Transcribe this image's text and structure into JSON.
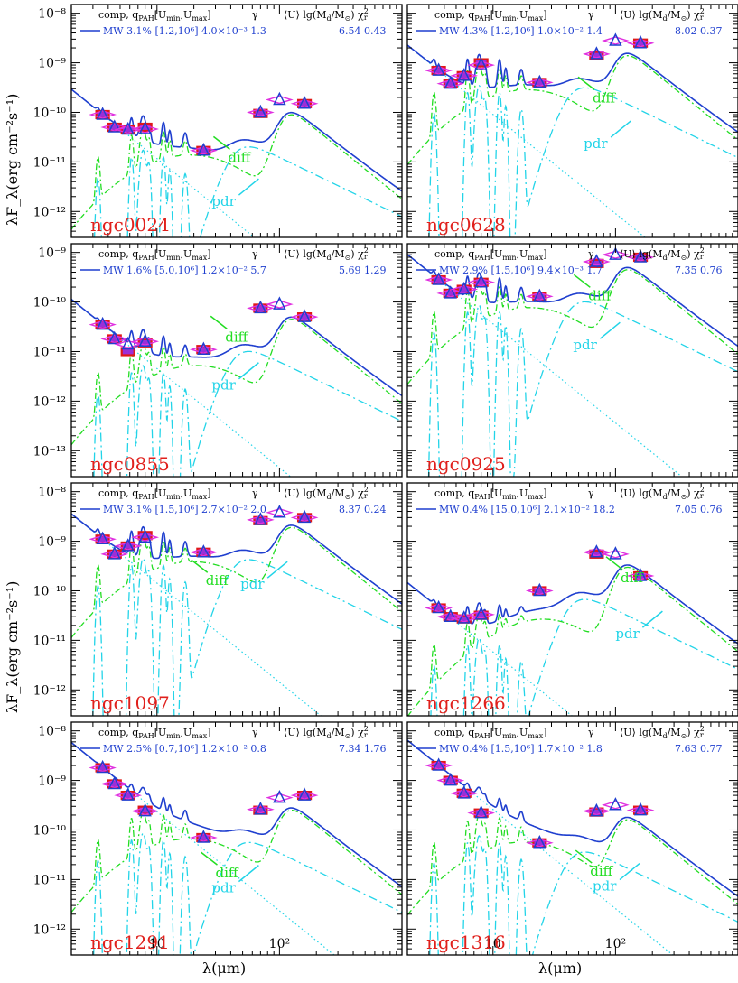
{
  "figure": {
    "xlabel": "λ(μm)",
    "ylabel": "λF_λ(erg cm⁻²s⁻¹)",
    "x_tick_labels": [
      "10",
      "10²"
    ],
    "legend_header": {
      "comp": "comp, q",
      "qsub": "PAH",
      "umin": "[U",
      "uminsub": "min",
      "umax": ",U",
      "umaxsub": "max",
      "close": "]",
      "gamma": "γ",
      "u": "⟨U⟩",
      "lgm": "lg(M",
      "lgmsub1": "d",
      "lgmmid": "/M",
      "lgmsub2": "⊙",
      "lgmend": ")",
      "chi": "χ",
      "chisup": "2",
      "chisub": "r"
    },
    "annotations": {
      "diff": "diff",
      "pdr": "pdr"
    }
  },
  "colors": {
    "total": "#1f3fcf",
    "diff": "#22dd22",
    "pdr": "#22d4e8",
    "stars": "#22d4e8",
    "obs_box": "#e01818",
    "obs_fill": "#9a2fd8",
    "model_diamond": "#e030e0",
    "model_triangle": "#1f3fcf",
    "galaxy_label": "#e0201c"
  },
  "chart_data": [
    {
      "type": "line",
      "panel": "ngc0024",
      "name_label": "ngc0024",
      "xlim": [
        2,
        1000
      ],
      "ylim": [
        3e-13,
        1.5e-08
      ],
      "y_tick_labels": [
        "10⁻⁸",
        "10⁻⁹",
        "10⁻¹⁰",
        "10⁻¹¹",
        "10⁻¹²"
      ],
      "y_ticks": [
        1e-08,
        1e-09,
        1e-10,
        1e-11,
        1e-12
      ],
      "legend": {
        "comp": "MW",
        "qpah": "3.1%",
        "urange": "[1.2,10⁶]",
        "gamma": "4.0×10⁻³",
        "u": "1.3",
        "lgm": "6.54",
        "chi2": "0.43"
      },
      "observed": [
        [
          3.6,
          9e-11
        ],
        [
          4.5,
          5e-11
        ],
        [
          5.8,
          4.5e-11
        ],
        [
          8.0,
          5e-11
        ],
        [
          24,
          1.7e-11
        ],
        [
          70,
          9.5e-11
        ],
        [
          160,
          1.5e-10
        ]
      ],
      "model": [
        [
          3.6,
          9e-11
        ],
        [
          4.5,
          5e-11
        ],
        [
          5.8,
          4.5e-11
        ],
        [
          8.0,
          4.6e-11
        ],
        [
          24,
          1.7e-11
        ],
        [
          70,
          1e-10
        ],
        [
          100,
          1.8e-10
        ],
        [
          160,
          1.5e-10
        ]
      ],
      "labels": {
        "diff": [
          38,
          1e-11
        ],
        "pdr": [
          28,
          1.3e-12
        ]
      }
    },
    {
      "type": "line",
      "panel": "ngc0628",
      "name_label": "ngc0628",
      "xlim": [
        2,
        1000
      ],
      "ylim": [
        3e-13,
        1.5e-08
      ],
      "y_tick_labels": [],
      "y_ticks": [
        1e-08,
        1e-09,
        1e-10,
        1e-11,
        1e-12
      ],
      "legend": {
        "comp": "MW",
        "qpah": "4.3%",
        "urange": "[1.2,10⁶]",
        "gamma": "1.0×10⁻²",
        "u": "1.4",
        "lgm": "8.02",
        "chi2": "0.37"
      },
      "observed": [
        [
          3.6,
          7e-10
        ],
        [
          4.5,
          3.8e-10
        ],
        [
          5.8,
          5.5e-10
        ],
        [
          8.0,
          1e-09
        ],
        [
          24,
          4e-10
        ],
        [
          70,
          1.4e-09
        ],
        [
          160,
          2.5e-09
        ]
      ],
      "model": [
        [
          3.6,
          7e-10
        ],
        [
          4.5,
          3.8e-10
        ],
        [
          5.8,
          5.5e-10
        ],
        [
          8.0,
          9e-10
        ],
        [
          24,
          4e-10
        ],
        [
          70,
          1.5e-09
        ],
        [
          100,
          2.8e-09
        ],
        [
          160,
          2.5e-09
        ]
      ],
      "labels": {
        "diff": [
          65,
          1.6e-10
        ],
        "pdr": [
          55,
          1.9e-11
        ]
      }
    },
    {
      "type": "line",
      "panel": "ngc0855",
      "name_label": "ngc0855",
      "xlim": [
        2,
        1000
      ],
      "ylim": [
        3e-14,
        1.5e-09
      ],
      "y_tick_labels": [
        "10⁻⁹",
        "10⁻¹⁰",
        "10⁻¹¹",
        "10⁻¹²",
        "10⁻¹³"
      ],
      "y_ticks": [
        1e-09,
        1e-10,
        1e-11,
        1e-12,
        1e-13
      ],
      "legend": {
        "comp": "MW",
        "qpah": "1.6%",
        "urange": "[5.0,10⁶]",
        "gamma": "1.2×10⁻²",
        "u": "5.7",
        "lgm": "5.69",
        "chi2": "1.29"
      },
      "observed": [
        [
          3.6,
          3.5e-11
        ],
        [
          4.5,
          1.8e-11
        ],
        [
          5.8,
          1e-11
        ],
        [
          8.0,
          1.5e-11
        ],
        [
          24,
          1.1e-11
        ],
        [
          70,
          7.5e-11
        ],
        [
          160,
          5e-11
        ]
      ],
      "model": [
        [
          3.6,
          3.5e-11
        ],
        [
          4.5,
          1.8e-11
        ],
        [
          5.8,
          1.4e-11
        ],
        [
          8.0,
          1.6e-11
        ],
        [
          24,
          1.1e-11
        ],
        [
          70,
          7.5e-11
        ],
        [
          100,
          9e-11
        ],
        [
          160,
          5e-11
        ]
      ],
      "labels": {
        "diff": [
          36,
          1.6e-11
        ],
        "pdr": [
          28,
          1.7e-12
        ]
      }
    },
    {
      "type": "line",
      "panel": "ngc0925",
      "name_label": "ngc0925",
      "xlim": [
        2,
        1000
      ],
      "ylim": [
        3e-14,
        1.5e-09
      ],
      "y_tick_labels": [],
      "y_ticks": [
        1e-09,
        1e-10,
        1e-11,
        1e-12,
        1e-13
      ],
      "legend": {
        "comp": "MW",
        "qpah": "2.9%",
        "urange": "[1.5,10⁶]",
        "gamma": "9.4×10⁻³",
        "u": "1.7",
        "lgm": "7.35",
        "chi2": "0.76"
      },
      "observed": [
        [
          3.6,
          2.8e-10
        ],
        [
          4.5,
          1.5e-10
        ],
        [
          5.8,
          1.8e-10
        ],
        [
          8.0,
          2.5e-10
        ],
        [
          24,
          1.3e-10
        ],
        [
          70,
          6e-10
        ],
        [
          160,
          8e-10
        ]
      ],
      "model": [
        [
          3.6,
          2.8e-10
        ],
        [
          4.5,
          1.5e-10
        ],
        [
          5.8,
          1.8e-10
        ],
        [
          8.0,
          2.5e-10
        ],
        [
          24,
          1.3e-10
        ],
        [
          70,
          6.5e-10
        ],
        [
          100,
          9e-10
        ],
        [
          160,
          8e-10
        ]
      ],
      "labels": {
        "diff": [
          60,
          1.1e-10
        ],
        "pdr": [
          45,
          1.1e-11
        ]
      }
    },
    {
      "type": "line",
      "panel": "ngc1097",
      "name_label": "ngc1097",
      "xlim": [
        2,
        1000
      ],
      "ylim": [
        3e-13,
        1.5e-08
      ],
      "y_tick_labels": [
        "10⁻⁸",
        "10⁻⁹",
        "10⁻¹⁰",
        "10⁻¹¹",
        "10⁻¹²"
      ],
      "y_ticks": [
        1e-08,
        1e-09,
        1e-10,
        1e-11,
        1e-12
      ],
      "legend": {
        "comp": "MW",
        "qpah": "3.1%",
        "urange": "[1.5,10⁶]",
        "gamma": "2.7×10⁻²",
        "u": "2.0",
        "lgm": "8.37",
        "chi2": "0.24"
      },
      "observed": [
        [
          3.6,
          1.1e-09
        ],
        [
          4.5,
          5.5e-10
        ],
        [
          5.8,
          8e-10
        ],
        [
          8.0,
          1.3e-09
        ],
        [
          24,
          6e-10
        ],
        [
          70,
          2.6e-09
        ],
        [
          160,
          3e-09
        ]
      ],
      "model": [
        [
          3.6,
          1.1e-09
        ],
        [
          4.5,
          5.5e-10
        ],
        [
          5.8,
          8e-10
        ],
        [
          8.0,
          1.2e-09
        ],
        [
          24,
          6e-10
        ],
        [
          70,
          2.7e-09
        ],
        [
          100,
          3.8e-09
        ],
        [
          160,
          3e-09
        ]
      ],
      "labels": {
        "diff": [
          25,
          1.3e-10
        ],
        "pdr": [
          48,
          1.1e-10
        ]
      }
    },
    {
      "type": "line",
      "panel": "ngc1266",
      "name_label": "ngc1266",
      "xlim": [
        2,
        1000
      ],
      "ylim": [
        3e-13,
        1.5e-08
      ],
      "y_tick_labels": [],
      "y_ticks": [
        1e-08,
        1e-09,
        1e-10,
        1e-11,
        1e-12
      ],
      "legend": {
        "comp": "MW",
        "qpah": "0.4%",
        "urange": "[15.0,10⁶]",
        "gamma": "2.1×10⁻²",
        "u": "18.2",
        "lgm": "7.05",
        "chi2": "0.76"
      },
      "observed": [
        [
          3.6,
          4.5e-11
        ],
        [
          4.5,
          3e-11
        ],
        [
          5.8,
          2.7e-11
        ],
        [
          8.0,
          3.2e-11
        ],
        [
          24,
          1e-10
        ],
        [
          70,
          5.5e-10
        ],
        [
          160,
          2e-10
        ]
      ],
      "model": [
        [
          3.6,
          4.5e-11
        ],
        [
          4.5,
          3e-11
        ],
        [
          5.8,
          2.8e-11
        ],
        [
          8.0,
          3.3e-11
        ],
        [
          24,
          1e-10
        ],
        [
          70,
          6e-10
        ],
        [
          100,
          5.5e-10
        ],
        [
          160,
          2e-10
        ]
      ],
      "labels": {
        "diff": [
          110,
          1.5e-10
        ],
        "pdr": [
          100,
          1.1e-11
        ]
      }
    },
    {
      "type": "line",
      "panel": "ngc1291",
      "name_label": "ngc1291",
      "xlim": [
        2,
        1000
      ],
      "ylim": [
        3e-13,
        1.5e-08
      ],
      "y_tick_labels": [
        "10⁻⁸",
        "10⁻⁹",
        "10⁻¹⁰",
        "10⁻¹¹",
        "10⁻¹²"
      ],
      "y_ticks": [
        1e-08,
        1e-09,
        1e-10,
        1e-11,
        1e-12
      ],
      "legend": {
        "comp": "MW",
        "qpah": "2.5%",
        "urange": "[0.7,10⁶]",
        "gamma": "1.2×10⁻²",
        "u": "0.8",
        "lgm": "7.34",
        "chi2": "1.76"
      },
      "observed": [
        [
          3.6,
          1.8e-09
        ],
        [
          4.5,
          8.5e-10
        ],
        [
          5.8,
          5e-10
        ],
        [
          8.0,
          2.5e-10
        ],
        [
          24,
          7e-11
        ],
        [
          70,
          2.5e-10
        ],
        [
          160,
          5e-10
        ]
      ],
      "model": [
        [
          3.6,
          1.8e-09
        ],
        [
          4.5,
          8.5e-10
        ],
        [
          5.8,
          5e-10
        ],
        [
          8.0,
          2.4e-10
        ],
        [
          24,
          7e-11
        ],
        [
          70,
          2.6e-10
        ],
        [
          100,
          4.5e-10
        ],
        [
          160,
          5e-10
        ]
      ],
      "labels": {
        "diff": [
          30,
          1.1e-11
        ],
        "pdr": [
          28,
          5.5e-12
        ]
      }
    },
    {
      "type": "line",
      "panel": "ngc1316",
      "name_label": "ngc1316",
      "xlim": [
        2,
        1000
      ],
      "ylim": [
        3e-13,
        1.5e-08
      ],
      "y_tick_labels": [],
      "y_ticks": [
        1e-08,
        1e-09,
        1e-10,
        1e-11,
        1e-12
      ],
      "legend": {
        "comp": "MW",
        "qpah": "0.4%",
        "urange": "[1.5,10⁶]",
        "gamma": "1.7×10⁻²",
        "u": "1.8",
        "lgm": "7.63",
        "chi2": "0.77"
      },
      "observed": [
        [
          3.6,
          2e-09
        ],
        [
          4.5,
          1e-09
        ],
        [
          5.8,
          5.5e-10
        ],
        [
          8.0,
          2.2e-10
        ],
        [
          24,
          5.5e-11
        ],
        [
          70,
          2.3e-10
        ],
        [
          160,
          2.5e-10
        ]
      ],
      "model": [
        [
          3.6,
          2e-09
        ],
        [
          4.5,
          1e-09
        ],
        [
          5.8,
          5.5e-10
        ],
        [
          8.0,
          2.2e-10
        ],
        [
          24,
          5.5e-11
        ],
        [
          70,
          2.4e-10
        ],
        [
          100,
          3.2e-10
        ],
        [
          160,
          2.5e-10
        ]
      ],
      "labels": {
        "diff": [
          62,
          1.2e-11
        ],
        "pdr": [
          65,
          6e-12
        ]
      }
    }
  ]
}
